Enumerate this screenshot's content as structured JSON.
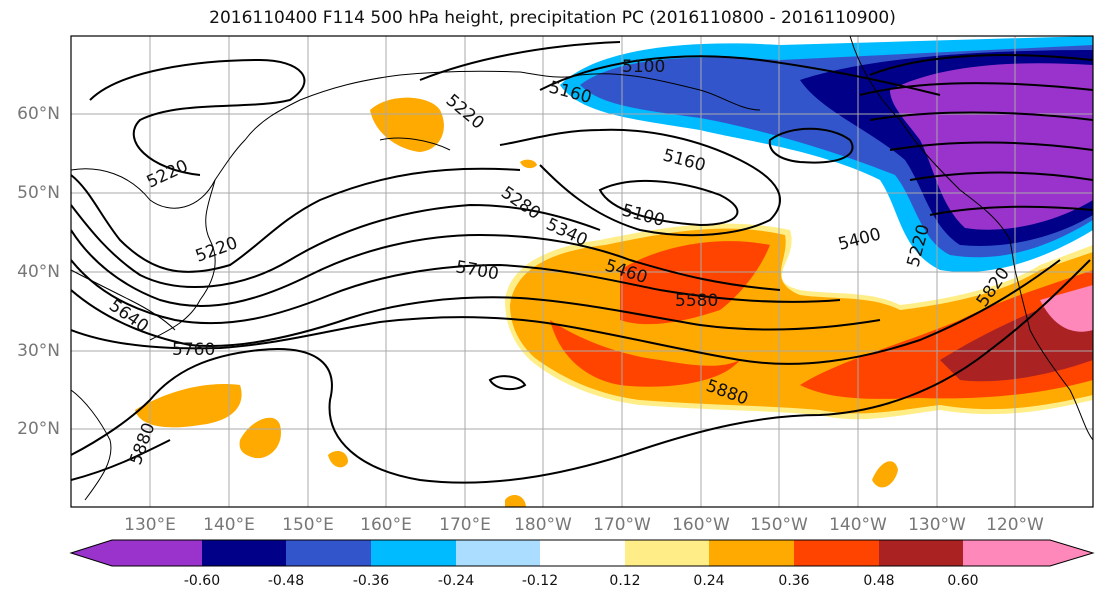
{
  "title": "2016110400 F114 500 hPa height, precipitation PC (2016110800 - 2016110900)",
  "lat_labels": [
    "60°N",
    "50°N",
    "40°N",
    "30°N",
    "20°N"
  ],
  "lon_labels": [
    "130°E",
    "140°E",
    "150°E",
    "160°E",
    "170°E",
    "180°W",
    "170°W",
    "160°W",
    "150°W",
    "140°W",
    "130°W",
    "120°W"
  ],
  "contour_labels": [
    "5100",
    "5160",
    "5220",
    "5160",
    "5220",
    "5100",
    "5280",
    "5340",
    "5220",
    "5400",
    "5220",
    "5460",
    "5700",
    "5580",
    "5640",
    "5760",
    "5820",
    "5880",
    "5880"
  ],
  "colorbar": {
    "colors": [
      "#9933cc",
      "#000088",
      "#3355cc",
      "#00bbff",
      "#aaddff",
      "#ffffff",
      "#ffee88",
      "#ffaa00",
      "#ff4400",
      "#aa2222",
      "#ff88bb"
    ],
    "tick_labels": [
      "-0.60",
      "-0.48",
      "-0.36",
      "-0.24",
      "-0.12",
      "0.12",
      "0.24",
      "0.36",
      "0.48",
      "0.60"
    ]
  }
}
